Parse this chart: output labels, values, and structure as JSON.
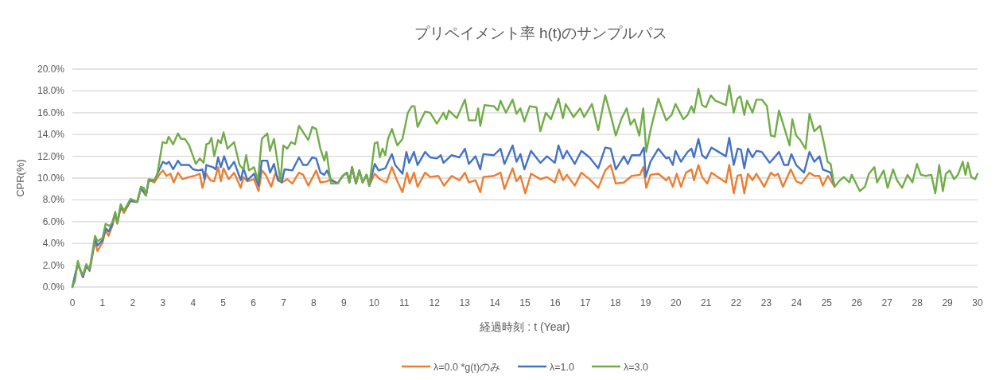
{
  "chart_data": {
    "type": "line",
    "title": "プリペイメント率 h(t)のサンプルパス",
    "xlabel": "経過時刻 : t (Year)",
    "ylabel": "CPR(%)",
    "xlim": [
      0,
      30
    ],
    "xticks": [
      0,
      1,
      2,
      3,
      4,
      5,
      6,
      7,
      8,
      9,
      10,
      11,
      12,
      13,
      14,
      15,
      16,
      17,
      18,
      19,
      20,
      21,
      22,
      23,
      24,
      25,
      26,
      27,
      28,
      29,
      30
    ],
    "ylim": [
      0,
      20
    ],
    "yticks": [
      {
        "value": 0,
        "label": "0.0%"
      },
      {
        "value": 2,
        "label": "2.0%"
      },
      {
        "value": 4,
        "label": "4.0%"
      },
      {
        "value": 6,
        "label": "6.0%"
      },
      {
        "value": 8,
        "label": "8.0%"
      },
      {
        "value": 10,
        "label": "10.0%"
      },
      {
        "value": 12,
        "label": "12.0%"
      },
      {
        "value": 14,
        "label": "14.0%"
      },
      {
        "value": 16,
        "label": "16.0%"
      },
      {
        "value": 18,
        "label": "18.0%"
      },
      {
        "value": 20,
        "label": "20.0%"
      }
    ],
    "grid": "y",
    "legend": "bottom",
    "line_style": "solid",
    "marker": "none",
    "series": [
      {
        "name": "λ=0.0 *g(t)のみ",
        "color": "#ed7d31",
        "x": [
          0,
          0.18,
          0.35,
          0.46,
          0.57,
          0.75,
          0.83,
          1.0,
          1.1,
          1.2,
          1.32,
          1.42,
          1.49,
          1.6,
          1.71,
          1.93,
          2.15,
          2.27,
          2.44,
          2.53,
          2.72,
          2.9,
          3.0,
          3.12,
          3.25,
          3.36,
          3.5,
          3.65,
          3.87,
          4.04,
          4.22,
          4.31,
          4.44,
          4.57,
          4.7,
          4.83,
          4.92,
          5.01,
          5.18,
          5.36,
          5.58,
          5.67,
          5.8,
          6.02,
          6.17,
          6.28,
          6.41,
          6.59,
          6.72,
          6.94,
          7.12,
          7.29,
          7.51,
          7.65,
          7.82,
          8.08,
          8.22,
          8.44,
          8.57,
          8.79,
          8.96,
          9.1,
          9.18,
          9.27,
          9.4,
          9.51,
          9.62,
          9.75,
          9.84,
          10.02,
          10.19,
          10.41,
          10.59,
          10.77,
          10.94,
          11.09,
          11.18,
          11.32,
          11.44,
          11.69,
          11.86,
          12.13,
          12.32,
          12.57,
          12.83,
          13.01,
          13.14,
          13.36,
          13.52,
          13.62,
          13.97,
          14.19,
          14.32,
          14.59,
          14.72,
          14.85,
          15.01,
          15.2,
          15.51,
          15.73,
          15.99,
          16.13,
          16.26,
          16.39,
          16.65,
          16.87,
          17.14,
          17.43,
          17.66,
          17.84,
          18.01,
          18.28,
          18.54,
          18.81,
          18.92,
          19.02,
          19.16,
          19.42,
          19.68,
          19.77,
          19.9,
          20.03,
          20.17,
          20.34,
          20.52,
          20.6,
          20.75,
          20.87,
          21.04,
          21.18,
          21.66,
          21.77,
          21.92,
          22.04,
          22.16,
          22.27,
          22.39,
          22.54,
          22.67,
          22.93,
          23.15,
          23.28,
          23.39,
          23.55,
          23.81,
          23.99,
          24.16,
          24.43,
          24.59,
          24.76,
          24.87,
          25.04,
          25.26
        ],
        "values": [
          0,
          2.1,
          0.9,
          1.9,
          1.5,
          4.2,
          3.3,
          4.1,
          5.2,
          4.7,
          5.6,
          6.7,
          5.8,
          7.3,
          6.8,
          7.9,
          7.8,
          9.1,
          8.4,
          9.8,
          9.6,
          10.4,
          10.7,
          10.2,
          10.4,
          9.6,
          10.5,
          9.9,
          10.1,
          10.2,
          10.4,
          9.1,
          10.4,
          9.8,
          9.7,
          11.0,
          9.7,
          10.9,
          9.9,
          10.5,
          9.1,
          10.1,
          9.7,
          9.9,
          8.8,
          10.7,
          10.3,
          9.2,
          10.4,
          9.6,
          9.9,
          9.5,
          10.5,
          10.3,
          9.3,
          10.7,
          9.6,
          9.7,
          9.9,
          9.5,
          10.2,
          10.5,
          9.6,
          11.0,
          9.5,
          10.7,
          9.6,
          10.3,
          9.3,
          10.4,
          9.9,
          9.6,
          11.0,
          9.7,
          8.7,
          10.5,
          9.5,
          10.5,
          9.2,
          10.5,
          10.1,
          10.2,
          9.3,
          10.2,
          9.8,
          10.5,
          9.6,
          9.8,
          8.7,
          10.1,
          10.2,
          10.5,
          9.0,
          10.9,
          9.7,
          10.2,
          8.6,
          10.4,
          9.9,
          10.1,
          9.6,
          10.8,
          9.8,
          10.3,
          9.3,
          10.5,
          9.9,
          9.1,
          10.7,
          11.2,
          9.5,
          9.6,
          10.2,
          10.3,
          11.0,
          9.1,
          10.3,
          10.4,
          9.8,
          10.1,
          9.2,
          10.4,
          9.2,
          10.5,
          10.8,
          9.8,
          11.2,
          10.1,
          9.5,
          10.5,
          9.6,
          11.2,
          8.6,
          10.2,
          10.3,
          8.6,
          10.4,
          9.8,
          10.4,
          9.2,
          10.5,
          10.2,
          10.4,
          9.2,
          10.8,
          9.7,
          9.5,
          10.5,
          10.2,
          10.2,
          9.3,
          10.2,
          9.2
        ]
      },
      {
        "name": "λ=1.0",
        "color": "#4472c4",
        "x": [
          0,
          0.18,
          0.35,
          0.46,
          0.57,
          0.75,
          0.83,
          1.0,
          1.1,
          1.2,
          1.32,
          1.42,
          1.49,
          1.6,
          1.71,
          1.93,
          2.15,
          2.27,
          2.44,
          2.53,
          2.72,
          2.9,
          3.0,
          3.12,
          3.2,
          3.34,
          3.5,
          3.6,
          3.87,
          4.0,
          4.17,
          4.31,
          4.38,
          4.44,
          4.66,
          4.75,
          4.83,
          4.92,
          5.03,
          5.18,
          5.36,
          5.58,
          5.67,
          5.8,
          6.02,
          6.17,
          6.28,
          6.46,
          6.55,
          6.68,
          6.81,
          6.94,
          7.03,
          7.29,
          7.51,
          7.65,
          7.78,
          7.95,
          8.08,
          8.22,
          8.35,
          8.44,
          8.57,
          8.79,
          8.96,
          9.1,
          9.18,
          9.27,
          9.4,
          9.51,
          9.62,
          9.75,
          9.84,
          10.02,
          10.15,
          10.37,
          10.59,
          10.7,
          10.94,
          11.07,
          11.16,
          11.32,
          11.44,
          11.69,
          11.86,
          12.08,
          12.21,
          12.3,
          12.57,
          12.83,
          13.01,
          13.14,
          13.36,
          13.52,
          13.62,
          13.97,
          14.19,
          14.32,
          14.59,
          14.72,
          14.85,
          14.98,
          15.2,
          15.51,
          15.73,
          15.99,
          16.11,
          16.26,
          16.39,
          16.65,
          16.87,
          17.14,
          17.43,
          17.66,
          17.84,
          18.01,
          18.28,
          18.41,
          18.54,
          18.81,
          18.94,
          19.0,
          19.16,
          19.42,
          19.68,
          19.77,
          19.9,
          19.99,
          20.17,
          20.39,
          20.52,
          20.6,
          20.75,
          20.87,
          21.0,
          21.18,
          21.66,
          21.77,
          21.92,
          22.05,
          22.16,
          22.27,
          22.39,
          22.54,
          22.67,
          22.85,
          22.98,
          23.11,
          23.24,
          23.42,
          23.59,
          23.72,
          23.83,
          23.99,
          24.25,
          24.43,
          24.59,
          24.76,
          24.87,
          25.13,
          25.26
        ],
        "values": [
          0,
          2.2,
          0.9,
          2.0,
          1.5,
          4.4,
          3.8,
          4.3,
          5.4,
          5.1,
          5.7,
          6.8,
          5.9,
          7.4,
          7.0,
          7.9,
          7.8,
          9.1,
          8.4,
          9.8,
          9.8,
          10.9,
          11.5,
          11.3,
          11.5,
          10.8,
          11.6,
          11.2,
          11.2,
          10.8,
          10.7,
          10.8,
          9.9,
          11.2,
          11.0,
          10.8,
          11.9,
          11.0,
          12.0,
          10.8,
          11.5,
          9.8,
          10.9,
          9.8,
          10.4,
          9.3,
          11.6,
          11.6,
          10.5,
          11.3,
          9.8,
          9.6,
          10.8,
          10.7,
          11.9,
          11.2,
          11.2,
          11.9,
          11.8,
          10.5,
          10.3,
          10.7,
          9.8,
          9.5,
          10.2,
          10.5,
          9.6,
          11.0,
          9.5,
          10.7,
          9.6,
          10.3,
          9.3,
          11.3,
          10.7,
          10.9,
          12.2,
          11.2,
          10.4,
          12.4,
          11.4,
          12.4,
          11.2,
          12.4,
          11.9,
          11.8,
          12.1,
          11.4,
          12.1,
          11.9,
          12.7,
          11.3,
          12.0,
          10.8,
          12.2,
          12.1,
          12.7,
          11.3,
          13.0,
          11.5,
          12.2,
          10.8,
          12.5,
          11.4,
          12.0,
          11.4,
          13.0,
          11.8,
          12.5,
          11.3,
          12.5,
          11.9,
          10.9,
          12.8,
          12.7,
          10.8,
          12.0,
          11.3,
          12.1,
          12.1,
          12.8,
          10.1,
          11.5,
          12.7,
          11.8,
          11.9,
          11.2,
          12.5,
          11.5,
          12.4,
          12.7,
          11.9,
          13.6,
          12.1,
          11.8,
          12.8,
          12.0,
          13.7,
          11.2,
          12.7,
          12.6,
          10.9,
          12.7,
          11.9,
          12.5,
          12.4,
          11.9,
          11.4,
          11.8,
          12.4,
          11.2,
          11.2,
          12.2,
          11.2,
          10.5,
          12.4,
          11.5,
          12.0,
          10.8,
          10.5,
          9.3
        ]
      },
      {
        "name": "λ=3.0",
        "color": "#70ad47",
        "x": [
          0,
          0.09,
          0.18,
          0.26,
          0.35,
          0.46,
          0.57,
          0.75,
          0.83,
          1.0,
          1.1,
          1.23,
          1.32,
          1.42,
          1.49,
          1.6,
          1.71,
          1.93,
          2.15,
          2.27,
          2.37,
          2.44,
          2.53,
          2.72,
          2.81,
          2.99,
          3.12,
          3.19,
          3.34,
          3.5,
          3.6,
          3.73,
          3.87,
          4.0,
          4.09,
          4.22,
          4.35,
          4.44,
          4.53,
          4.61,
          4.7,
          4.83,
          4.92,
          5.01,
          5.14,
          5.36,
          5.54,
          5.67,
          5.76,
          5.85,
          6.02,
          6.15,
          6.28,
          6.46,
          6.55,
          6.68,
          6.9,
          6.99,
          7.12,
          7.25,
          7.38,
          7.51,
          7.65,
          7.82,
          7.95,
          8.08,
          8.22,
          8.35,
          8.42,
          8.57,
          8.79,
          8.96,
          9.1,
          9.18,
          9.27,
          9.4,
          9.51,
          9.62,
          9.75,
          9.84,
          10.02,
          10.11,
          10.19,
          10.28,
          10.37,
          10.46,
          10.59,
          10.77,
          10.94,
          11.12,
          11.25,
          11.34,
          11.44,
          11.6,
          11.69,
          11.86,
          12.08,
          12.3,
          12.39,
          12.48,
          12.74,
          13.01,
          13.14,
          13.36,
          13.45,
          13.52,
          13.66,
          13.97,
          14.1,
          14.19,
          14.37,
          14.59,
          14.72,
          14.85,
          14.98,
          15.16,
          15.38,
          15.51,
          15.69,
          15.86,
          16.11,
          16.26,
          16.35,
          16.61,
          16.83,
          16.96,
          17.22,
          17.43,
          17.66,
          17.84,
          18.01,
          18.19,
          18.37,
          18.5,
          18.63,
          18.79,
          18.92,
          19.02,
          19.16,
          19.42,
          19.68,
          19.86,
          19.99,
          20.25,
          20.39,
          20.52,
          20.6,
          20.75,
          20.87,
          21.0,
          21.16,
          21.31,
          21.66,
          21.77,
          21.92,
          22.04,
          22.14,
          22.27,
          22.36,
          22.54,
          22.67,
          22.85,
          23.02,
          23.15,
          23.28,
          23.42,
          23.64,
          23.77,
          23.86,
          23.99,
          24.12,
          24.3,
          24.43,
          24.59,
          24.78,
          24.91,
          25.03,
          25.13,
          25.26,
          25.44,
          25.57,
          25.75,
          25.83,
          26.1,
          26.27,
          26.4,
          26.58,
          26.67,
          26.89,
          27.02,
          27.2,
          27.33,
          27.5,
          27.68,
          27.84,
          27.99,
          28.12,
          28.29,
          28.47,
          28.6,
          28.73,
          28.85,
          28.95,
          29.08,
          29.22,
          29.35,
          29.51,
          29.6,
          29.68,
          29.79,
          29.92,
          30.0
        ],
        "values": [
          0,
          0.6,
          2.4,
          1.6,
          1.1,
          2.1,
          1.6,
          4.7,
          4.2,
          4.5,
          5.8,
          5.6,
          5.9,
          6.9,
          5.9,
          7.6,
          7.0,
          8.1,
          7.8,
          9.2,
          9.1,
          8.4,
          9.9,
          9.8,
          10.3,
          13.3,
          13.2,
          13.8,
          13.1,
          14.1,
          13.6,
          13.6,
          13.0,
          12.0,
          11.3,
          11.8,
          11.4,
          13.1,
          13.2,
          13.7,
          12.0,
          13.5,
          13.2,
          14.2,
          12.7,
          13.3,
          11.2,
          10.8,
          12.1,
          10.7,
          11.0,
          9.8,
          13.6,
          14.1,
          12.5,
          13.6,
          9.7,
          13.0,
          12.7,
          13.3,
          13.1,
          14.8,
          14.2,
          13.5,
          14.7,
          14.5,
          12.7,
          11.6,
          12.4,
          9.5,
          9.5,
          10.2,
          10.5,
          9.6,
          11.0,
          9.5,
          10.7,
          9.6,
          10.3,
          9.3,
          13.2,
          13.3,
          11.9,
          12.7,
          12.1,
          13.6,
          14.5,
          13.0,
          13.6,
          16.0,
          16.6,
          16.6,
          14.7,
          15.6,
          16.1,
          16.0,
          15.0,
          16.0,
          15.4,
          16.2,
          15.5,
          17.2,
          15.3,
          15.3,
          16.4,
          14.8,
          16.7,
          16.6,
          16.2,
          17.1,
          16.0,
          17.2,
          15.9,
          16.4,
          15.2,
          16.6,
          16.5,
          14.3,
          16.0,
          15.4,
          17.3,
          15.5,
          16.8,
          15.6,
          16.4,
          15.6,
          16.8,
          14.4,
          17.6,
          15.8,
          13.9,
          15.4,
          16.4,
          14.9,
          15.4,
          13.9,
          16.4,
          12.4,
          14.4,
          17.3,
          15.3,
          15.8,
          16.8,
          15.4,
          15.8,
          16.6,
          16.0,
          18.2,
          16.7,
          16.5,
          17.6,
          17.1,
          16.7,
          18.5,
          16.0,
          17.3,
          17.5,
          15.8,
          17.1,
          16.0,
          17.2,
          17.2,
          16.6,
          13.9,
          13.8,
          16.2,
          14.2,
          13.0,
          15.4,
          13.9,
          13.5,
          12.7,
          15.9,
          14.3,
          14.8,
          13.2,
          11.5,
          11.3,
          9.2,
          9.8,
          10.1,
          9.6,
          10.3,
          8.8,
          9.2,
          10.4,
          11.0,
          9.6,
          10.7,
          9.1,
          10.8,
          9.8,
          9.1,
          10.3,
          9.6,
          11.3,
          10.3,
          10.2,
          10.3,
          8.6,
          11.2,
          8.8,
          10.4,
          10.7,
          9.9,
          10.3,
          11.5,
          10.3,
          11.4,
          10.1,
          9.9,
          10.4
        ]
      }
    ]
  }
}
